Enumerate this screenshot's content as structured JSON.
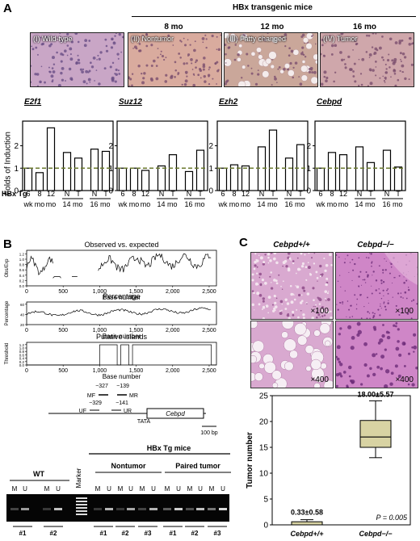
{
  "panel_a": {
    "label": "A",
    "header": "HBx transgenic mice",
    "ages": [
      "8 mo",
      "12 mo",
      "16 mo"
    ],
    "histology": [
      {
        "label": "(I) Wild-type",
        "color": "#c9a6c6"
      },
      {
        "label": "(II) Nontumor",
        "color": "#d9ab9e"
      },
      {
        "label": "(III) Fatty changed",
        "color": "#caa79a"
      },
      {
        "label": "(IV) Tumor",
        "color": "#cfa7ab"
      }
    ],
    "ylabel": "Folds of Induction",
    "row_label": "HBx Tg",
    "x_top": [
      "6",
      "8",
      "12",
      "N",
      "T",
      "N",
      "T"
    ],
    "x_bottom": [
      "wk",
      "mo",
      "mo",
      "14 mo",
      "16 mo"
    ]
  },
  "chart_data": [
    {
      "type": "bar",
      "title": "E2f1",
      "categories": [
        "6 wk",
        "8 mo",
        "12 mo",
        "14 mo N",
        "14 mo T",
        "16 mo N",
        "16 mo T"
      ],
      "values": [
        1.0,
        0.8,
        2.8,
        1.7,
        1.45,
        1.85,
        1.75
      ],
      "ylim": [
        0,
        3.1
      ],
      "yticks": [
        0,
        1,
        2
      ],
      "reference_line": 1
    },
    {
      "type": "bar",
      "title": "Suz12",
      "categories": [
        "6 wk",
        "8 mo",
        "12 mo",
        "14 mo N",
        "14 mo T",
        "16 mo N",
        "16 mo T"
      ],
      "values": [
        1.0,
        1.0,
        0.9,
        1.1,
        1.6,
        0.85,
        1.8
      ],
      "ylim": [
        0,
        3.1
      ],
      "yticks": [
        0,
        1,
        2
      ],
      "reference_line": 1
    },
    {
      "type": "bar",
      "title": "Ezh2",
      "categories": [
        "6 wk",
        "8 mo",
        "12 mo",
        "14 mo N",
        "14 mo T",
        "16 mo N",
        "16 mo T"
      ],
      "values": [
        1.0,
        1.15,
        1.1,
        1.95,
        2.7,
        1.45,
        2.05
      ],
      "ylim": [
        0,
        3.1
      ],
      "yticks": [
        0,
        1,
        2
      ],
      "reference_line": 1
    },
    {
      "type": "bar",
      "title": "Cebpd",
      "categories": [
        "6 wk",
        "8 mo",
        "12 mo",
        "14 mo N",
        "14 mo T",
        "16 mo N",
        "16 mo T"
      ],
      "values": [
        1.0,
        1.7,
        1.6,
        1.95,
        1.25,
        1.8,
        1.05
      ],
      "ylim": [
        0,
        3.1
      ],
      "yticks": [
        0,
        1,
        2
      ],
      "reference_line": 1
    },
    {
      "type": "line",
      "title": "Observed vs. expected",
      "ylabel": "Obs/Exp",
      "xlabel": "Base number",
      "xticks": [
        "0",
        "500",
        "1,000",
        "1,500",
        "2,000",
        "2,500"
      ],
      "yticks": [
        "0.0",
        "0.2",
        "0.4",
        "0.6",
        "0.8",
        "1.0",
        "1.2"
      ]
    },
    {
      "type": "line",
      "title": "Percentage",
      "ylabel": "Percentage",
      "xlabel": "Base number",
      "xticks": [
        "0",
        "500",
        "1,000",
        "1,500",
        "2,000",
        "2,500"
      ],
      "yticks": [
        "20",
        "40",
        "60"
      ]
    },
    {
      "type": "line",
      "title": "Putative islands",
      "ylabel": "Threshold",
      "xlabel": "Base number",
      "xticks": [
        "0",
        "500",
        "1,000",
        "1,500",
        "2,000",
        "2,500"
      ],
      "yticks": [
        "0.0",
        "0.2",
        "0.4",
        "0.6",
        "0.8",
        "1.0",
        "1.2"
      ],
      "islands": [
        [
          1000,
          1240
        ],
        [
          1290,
          1400
        ],
        [
          1450,
          2530
        ]
      ]
    },
    {
      "type": "box",
      "ylabel": "Tumor number",
      "categories": [
        "Cebpd+/+",
        "Cebpd−/−"
      ],
      "values": [
        0.33,
        18.0
      ],
      "errors": [
        0.58,
        5.57
      ],
      "ylim": [
        0,
        25
      ],
      "yticks": [
        0,
        5,
        10,
        15,
        20,
        25
      ],
      "annotation": "P = 0.005"
    }
  ],
  "panel_b": {
    "label": "B",
    "map": {
      "mf": "MF",
      "mr": "MR",
      "uf": "UF",
      "ur": "UR",
      "m_pos1": "−327",
      "m_pos2": "−139",
      "u_pos1": "−329",
      "u_pos2": "−141",
      "tata": "TATA",
      "gene": "Cebpd",
      "scale": "100 bp"
    },
    "gel": {
      "header": "HBx Tg mice",
      "marker": "Marker",
      "groups": [
        "WT",
        "Nontumor",
        "Paired tumor"
      ],
      "lanes": [
        "M",
        "U",
        "M",
        "U",
        "M",
        "U",
        "M",
        "U",
        "M",
        "U",
        "M",
        "U",
        "M",
        "U",
        "M",
        "U",
        "M",
        "U"
      ],
      "samples": [
        "#1",
        "#2",
        "#1",
        "#2",
        "#3",
        "#1",
        "#2",
        "#3"
      ]
    }
  },
  "panel_c": {
    "label": "C",
    "col1": "Cebpd+/+",
    "col2": "Cebpd−/−",
    "mag_low": "×100",
    "mag_high": "×400",
    "box_labels": [
      "0.33±0.58",
      "18.00±5.57"
    ],
    "pvalue": "P = 0.005"
  }
}
